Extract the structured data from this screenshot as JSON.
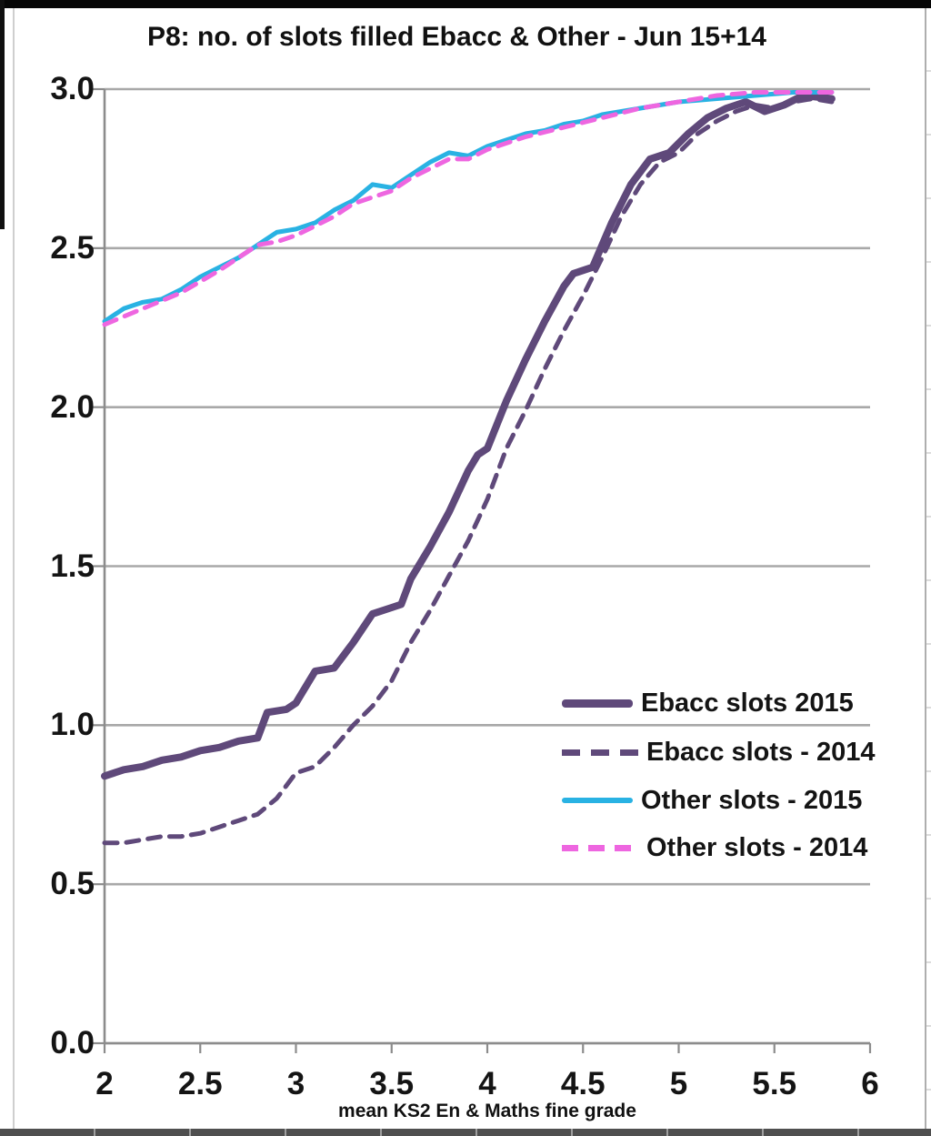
{
  "window": {
    "bottom_strip_note": "worksheet row edge"
  },
  "chart_data": {
    "type": "line",
    "title": "P8: no. of slots filled Ebacc & Other - Jun 15+14",
    "xlabel": "mean KS2 En & Maths fine grade",
    "ylabel": "",
    "xlim": [
      2,
      6
    ],
    "ylim": [
      0,
      3
    ],
    "grid": "horizontal",
    "legend_position": "inside-lower-right",
    "xticks": [
      2,
      2.5,
      3,
      3.5,
      4,
      4.5,
      5,
      5.5,
      6
    ],
    "xtick_labels": [
      "2",
      "2.5",
      "3",
      "3.5",
      "4",
      "4.5",
      "5",
      "5.5",
      "6"
    ],
    "yticks": [
      3.0,
      2.5,
      2.0,
      1.5,
      1.0,
      0.5,
      0.0
    ],
    "ytick_labels": [
      "3.0",
      "2.5",
      "2.0",
      "1.5",
      "1.0",
      "0.5",
      "0.0"
    ],
    "colors": {
      "grid": "#A8A8A8",
      "axis": "#8C8C8C",
      "text": "#141414",
      "ebacc_purple": "#5F497A",
      "other_cyan": "#29B2E3",
      "other_magenta": "#EE66E0"
    },
    "series": [
      {
        "name": "Ebacc slots 2015",
        "color": "#5F497A",
        "style": "solid",
        "width": 8,
        "x": [
          2.0,
          2.1,
          2.2,
          2.3,
          2.4,
          2.5,
          2.6,
          2.7,
          2.8,
          2.85,
          2.95,
          3.0,
          3.1,
          3.2,
          3.3,
          3.4,
          3.5,
          3.55,
          3.6,
          3.7,
          3.8,
          3.9,
          3.95,
          4.0,
          4.1,
          4.2,
          4.3,
          4.4,
          4.45,
          4.55,
          4.65,
          4.75,
          4.85,
          4.95,
          5.05,
          5.15,
          5.25,
          5.35,
          5.45,
          5.55,
          5.65,
          5.8
        ],
        "y": [
          0.84,
          0.86,
          0.87,
          0.89,
          0.9,
          0.92,
          0.93,
          0.95,
          0.96,
          1.04,
          1.05,
          1.07,
          1.17,
          1.18,
          1.26,
          1.35,
          1.37,
          1.38,
          1.46,
          1.56,
          1.67,
          1.8,
          1.85,
          1.87,
          2.02,
          2.15,
          2.27,
          2.38,
          2.42,
          2.44,
          2.58,
          2.7,
          2.78,
          2.8,
          2.86,
          2.91,
          2.94,
          2.96,
          2.93,
          2.95,
          2.98,
          2.97
        ]
      },
      {
        "name": "Ebacc slots - 2014",
        "color": "#5F497A",
        "style": "dashed",
        "width": 5,
        "x": [
          2.0,
          2.1,
          2.2,
          2.3,
          2.4,
          2.5,
          2.6,
          2.7,
          2.8,
          2.9,
          3.0,
          3.1,
          3.2,
          3.3,
          3.4,
          3.5,
          3.6,
          3.7,
          3.8,
          3.9,
          4.0,
          4.1,
          4.2,
          4.3,
          4.4,
          4.5,
          4.6,
          4.7,
          4.8,
          4.9,
          5.0,
          5.1,
          5.2,
          5.3,
          5.4,
          5.5,
          5.6,
          5.7,
          5.8
        ],
        "y": [
          0.63,
          0.63,
          0.64,
          0.65,
          0.65,
          0.66,
          0.68,
          0.7,
          0.72,
          0.77,
          0.85,
          0.87,
          0.93,
          1.0,
          1.06,
          1.14,
          1.26,
          1.36,
          1.47,
          1.58,
          1.71,
          1.87,
          1.99,
          2.12,
          2.24,
          2.35,
          2.47,
          2.6,
          2.7,
          2.77,
          2.8,
          2.86,
          2.9,
          2.93,
          2.95,
          2.94,
          2.96,
          2.97,
          2.96
        ]
      },
      {
        "name": "Other slots - 2015",
        "color": "#29B2E3",
        "style": "solid",
        "width": 5,
        "x": [
          2.0,
          2.1,
          2.2,
          2.3,
          2.4,
          2.5,
          2.6,
          2.7,
          2.8,
          2.9,
          3.0,
          3.1,
          3.2,
          3.3,
          3.4,
          3.5,
          3.6,
          3.7,
          3.8,
          3.9,
          4.0,
          4.1,
          4.2,
          4.3,
          4.4,
          4.5,
          4.6,
          4.7,
          4.8,
          4.9,
          5.0,
          5.2,
          5.4,
          5.6,
          5.8
        ],
        "y": [
          2.27,
          2.31,
          2.33,
          2.34,
          2.37,
          2.41,
          2.44,
          2.47,
          2.51,
          2.55,
          2.56,
          2.58,
          2.62,
          2.65,
          2.7,
          2.69,
          2.73,
          2.77,
          2.8,
          2.79,
          2.82,
          2.84,
          2.86,
          2.87,
          2.89,
          2.9,
          2.92,
          2.93,
          2.94,
          2.95,
          2.96,
          2.97,
          2.98,
          2.99,
          2.99
        ]
      },
      {
        "name": "Other slots - 2014",
        "color": "#EE66E0",
        "style": "dashed",
        "width": 5,
        "x": [
          2.0,
          2.2,
          2.4,
          2.6,
          2.8,
          2.9,
          3.0,
          3.1,
          3.2,
          3.3,
          3.4,
          3.5,
          3.6,
          3.7,
          3.8,
          3.9,
          4.0,
          4.2,
          4.4,
          4.6,
          4.8,
          5.0,
          5.2,
          5.4,
          5.6,
          5.8
        ],
        "y": [
          2.26,
          2.31,
          2.36,
          2.43,
          2.51,
          2.52,
          2.54,
          2.57,
          2.6,
          2.64,
          2.66,
          2.68,
          2.72,
          2.75,
          2.78,
          2.78,
          2.81,
          2.85,
          2.88,
          2.91,
          2.94,
          2.96,
          2.98,
          2.99,
          2.99,
          2.99
        ]
      }
    ]
  }
}
